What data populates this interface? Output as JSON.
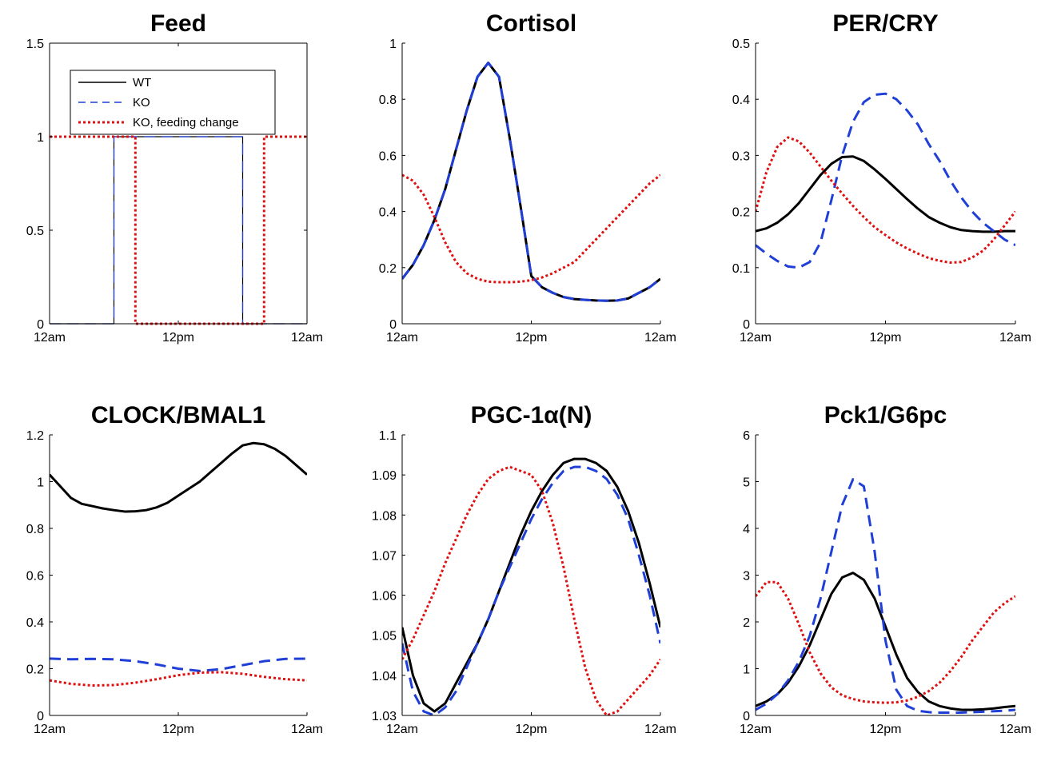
{
  "chart_data": [
    {
      "type": "line",
      "title": "Feed",
      "x_ticks": [
        "12am",
        "12pm",
        "12am"
      ],
      "xlim": [
        0,
        24
      ],
      "ylim": [
        0,
        1.5
      ],
      "y_ticks": [
        "0",
        "0.5",
        "1",
        "1.5"
      ],
      "legend_position": "top-left",
      "series": [
        {
          "name": "WT",
          "color": "#000000",
          "style": "solid",
          "width": 1.2,
          "x": [
            0,
            6,
            6,
            18,
            18,
            24
          ],
          "y": [
            0,
            0,
            1,
            1,
            0,
            0
          ]
        },
        {
          "name": "KO",
          "color": "#1f3fd6",
          "style": "dashed",
          "width": 1.2,
          "x": [
            0,
            6,
            6,
            18,
            18,
            24
          ],
          "y": [
            0,
            0,
            1,
            1,
            0,
            0
          ]
        },
        {
          "name": "KO, feeding change",
          "color": "#e01010",
          "style": "dotted",
          "width": 3,
          "x": [
            0,
            8,
            8,
            20,
            20,
            24
          ],
          "y": [
            1,
            1,
            0,
            0,
            1,
            1
          ]
        }
      ]
    },
    {
      "type": "line",
      "title": "Cortisol",
      "x_ticks": [
        "12am",
        "12pm",
        "12am"
      ],
      "xlim": [
        0,
        24
      ],
      "ylim": [
        0,
        1
      ],
      "y_ticks": [
        "0",
        "0.2",
        "0.4",
        "0.6",
        "0.8",
        "1"
      ],
      "series": [
        {
          "color": "#000000",
          "style": "solid",
          "width": 3,
          "x": [
            0,
            1,
            2,
            3,
            4,
            5,
            6,
            7,
            8,
            9,
            10,
            11,
            12,
            13,
            14,
            15,
            16,
            17,
            18,
            19,
            20,
            21,
            22,
            23,
            24
          ],
          "y": [
            0.16,
            0.21,
            0.28,
            0.37,
            0.48,
            0.62,
            0.76,
            0.88,
            0.93,
            0.88,
            0.66,
            0.42,
            0.17,
            0.13,
            0.11,
            0.095,
            0.088,
            0.085,
            0.083,
            0.082,
            0.083,
            0.09,
            0.11,
            0.13,
            0.16
          ]
        },
        {
          "color": "#1f3fd6",
          "style": "dashed",
          "width": 3,
          "x": [
            0,
            1,
            2,
            3,
            4,
            5,
            6,
            7,
            8,
            9,
            10,
            11,
            12,
            13,
            14,
            15,
            16,
            17,
            18,
            19,
            20,
            21,
            22,
            23,
            24
          ],
          "y": [
            0.16,
            0.21,
            0.28,
            0.37,
            0.48,
            0.62,
            0.76,
            0.88,
            0.93,
            0.88,
            0.66,
            0.42,
            0.17,
            0.13,
            0.11,
            0.095,
            0.088,
            0.085,
            0.083,
            0.082,
            0.083,
            0.09,
            0.11,
            0.13,
            0.16
          ]
        },
        {
          "color": "#e01010",
          "style": "dotted",
          "width": 3,
          "x": [
            0,
            1,
            2,
            3,
            4,
            5,
            6,
            7,
            8,
            9,
            10,
            11,
            12,
            13,
            14,
            15,
            16,
            17,
            18,
            19,
            20,
            21,
            22,
            23,
            24
          ],
          "y": [
            0.53,
            0.51,
            0.46,
            0.38,
            0.29,
            0.22,
            0.18,
            0.16,
            0.15,
            0.148,
            0.148,
            0.15,
            0.155,
            0.165,
            0.18,
            0.2,
            0.22,
            0.26,
            0.3,
            0.34,
            0.38,
            0.42,
            0.46,
            0.5,
            0.53
          ]
        }
      ]
    },
    {
      "type": "line",
      "title": "PER/CRY",
      "x_ticks": [
        "12am",
        "12pm",
        "12am"
      ],
      "xlim": [
        0,
        24
      ],
      "ylim": [
        0,
        0.5
      ],
      "y_ticks": [
        "0",
        "0.1",
        "0.2",
        "0.3",
        "0.4",
        "0.5"
      ],
      "series": [
        {
          "color": "#000000",
          "style": "solid",
          "width": 3,
          "x": [
            0,
            1,
            2,
            3,
            4,
            5,
            6,
            7,
            8,
            9,
            10,
            11,
            12,
            13,
            14,
            15,
            16,
            17,
            18,
            19,
            20,
            21,
            22,
            23,
            24
          ],
          "y": [
            0.165,
            0.17,
            0.18,
            0.195,
            0.215,
            0.24,
            0.265,
            0.285,
            0.297,
            0.298,
            0.29,
            0.275,
            0.258,
            0.24,
            0.222,
            0.205,
            0.19,
            0.18,
            0.172,
            0.167,
            0.165,
            0.164,
            0.164,
            0.165,
            0.165
          ]
        },
        {
          "color": "#1f3fd6",
          "style": "dashed",
          "width": 3,
          "x": [
            0,
            1,
            2,
            3,
            4,
            5,
            6,
            7,
            8,
            9,
            10,
            11,
            12,
            13,
            14,
            15,
            16,
            17,
            18,
            19,
            20,
            21,
            22,
            23,
            24
          ],
          "y": [
            0.14,
            0.125,
            0.112,
            0.102,
            0.1,
            0.11,
            0.145,
            0.22,
            0.3,
            0.36,
            0.395,
            0.408,
            0.41,
            0.4,
            0.38,
            0.355,
            0.32,
            0.29,
            0.255,
            0.225,
            0.2,
            0.18,
            0.165,
            0.15,
            0.14
          ]
        },
        {
          "color": "#e01010",
          "style": "dotted",
          "width": 3,
          "x": [
            0,
            1,
            2,
            3,
            4,
            5,
            6,
            7,
            8,
            9,
            10,
            11,
            12,
            13,
            14,
            15,
            16,
            17,
            18,
            19,
            20,
            21,
            22,
            23,
            24
          ],
          "y": [
            0.2,
            0.27,
            0.315,
            0.332,
            0.325,
            0.305,
            0.28,
            0.255,
            0.232,
            0.21,
            0.19,
            0.172,
            0.158,
            0.145,
            0.134,
            0.125,
            0.117,
            0.112,
            0.109,
            0.11,
            0.118,
            0.13,
            0.15,
            0.175,
            0.2
          ]
        }
      ]
    },
    {
      "type": "line",
      "title": "CLOCK/BMAL1",
      "x_ticks": [
        "12am",
        "12pm",
        "12am"
      ],
      "xlim": [
        0,
        24
      ],
      "ylim": [
        0,
        1.2
      ],
      "y_ticks": [
        "0",
        "0.2",
        "0.4",
        "0.6",
        "0.8",
        "1",
        "1.2"
      ],
      "series": [
        {
          "color": "#000000",
          "style": "solid",
          "width": 3,
          "x": [
            0,
            1,
            2,
            3,
            4,
            5,
            6,
            7,
            8,
            9,
            10,
            11,
            12,
            13,
            14,
            15,
            16,
            17,
            18,
            19,
            20,
            21,
            22,
            23,
            24
          ],
          "y": [
            1.03,
            0.98,
            0.93,
            0.905,
            0.895,
            0.885,
            0.878,
            0.872,
            0.873,
            0.878,
            0.89,
            0.91,
            0.94,
            0.97,
            1.0,
            1.04,
            1.08,
            1.12,
            1.155,
            1.165,
            1.16,
            1.14,
            1.11,
            1.07,
            1.03
          ]
        },
        {
          "color": "#1f3fd6",
          "style": "dashed",
          "width": 3,
          "x": [
            0,
            2,
            4,
            6,
            8,
            10,
            12,
            14,
            16,
            18,
            20,
            22,
            24
          ],
          "y": [
            0.243,
            0.24,
            0.242,
            0.24,
            0.232,
            0.218,
            0.2,
            0.19,
            0.198,
            0.215,
            0.232,
            0.242,
            0.243
          ]
        },
        {
          "color": "#e01010",
          "style": "dotted",
          "width": 3,
          "x": [
            0,
            2,
            4,
            6,
            8,
            10,
            12,
            14,
            16,
            18,
            20,
            22,
            24
          ],
          "y": [
            0.15,
            0.135,
            0.128,
            0.13,
            0.14,
            0.155,
            0.172,
            0.183,
            0.185,
            0.178,
            0.165,
            0.155,
            0.15
          ]
        }
      ]
    },
    {
      "type": "line",
      "title": "PGC-1α(N)",
      "x_ticks": [
        "12am",
        "12pm",
        "12am"
      ],
      "xlim": [
        0,
        24
      ],
      "ylim": [
        1.03,
        1.1
      ],
      "y_ticks": [
        "1.03",
        "1.04",
        "1.05",
        "1.06",
        "1.07",
        "1.08",
        "1.09",
        "1.1"
      ],
      "series": [
        {
          "color": "#000000",
          "style": "solid",
          "width": 3,
          "x": [
            0,
            1,
            2,
            3,
            4,
            5,
            6,
            7,
            8,
            9,
            10,
            11,
            12,
            13,
            14,
            15,
            16,
            17,
            18,
            19,
            20,
            21,
            22,
            23,
            24
          ],
          "y": [
            1.052,
            1.04,
            1.033,
            1.031,
            1.033,
            1.038,
            1.043,
            1.048,
            1.054,
            1.061,
            1.068,
            1.075,
            1.081,
            1.086,
            1.09,
            1.093,
            1.094,
            1.094,
            1.093,
            1.091,
            1.087,
            1.081,
            1.073,
            1.063,
            1.052
          ]
        },
        {
          "color": "#1f3fd6",
          "style": "dashed",
          "width": 3,
          "x": [
            0,
            1,
            2,
            3,
            4,
            5,
            6,
            7,
            8,
            9,
            10,
            11,
            12,
            13,
            14,
            15,
            16,
            17,
            18,
            19,
            20,
            21,
            22,
            23,
            24
          ],
          "y": [
            1.048,
            1.036,
            1.031,
            1.03,
            1.032,
            1.036,
            1.042,
            1.048,
            1.054,
            1.061,
            1.067,
            1.073,
            1.079,
            1.084,
            1.088,
            1.091,
            1.092,
            1.092,
            1.091,
            1.089,
            1.085,
            1.079,
            1.07,
            1.06,
            1.048
          ]
        },
        {
          "color": "#e01010",
          "style": "dotted",
          "width": 3,
          "x": [
            0,
            1,
            2,
            3,
            4,
            5,
            6,
            7,
            8,
            9,
            10,
            11,
            12,
            13,
            14,
            15,
            16,
            17,
            18,
            19,
            20,
            21,
            22,
            23,
            24
          ],
          "y": [
            1.044,
            1.049,
            1.055,
            1.061,
            1.068,
            1.074,
            1.08,
            1.085,
            1.089,
            1.091,
            1.092,
            1.091,
            1.09,
            1.086,
            1.078,
            1.067,
            1.054,
            1.042,
            1.034,
            1.03,
            1.031,
            1.034,
            1.037,
            1.04,
            1.044
          ]
        }
      ]
    },
    {
      "type": "line",
      "title": "Pck1/G6pc",
      "x_ticks": [
        "12am",
        "12pm",
        "12am"
      ],
      "xlim": [
        0,
        24
      ],
      "ylim": [
        0,
        6
      ],
      "y_ticks": [
        "0",
        "1",
        "2",
        "3",
        "4",
        "5",
        "6"
      ],
      "series": [
        {
          "color": "#000000",
          "style": "solid",
          "width": 3,
          "x": [
            0,
            1,
            2,
            3,
            4,
            5,
            6,
            7,
            8,
            9,
            10,
            11,
            12,
            13,
            14,
            15,
            16,
            17,
            18,
            19,
            20,
            21,
            22,
            23,
            24
          ],
          "y": [
            0.2,
            0.3,
            0.45,
            0.7,
            1.05,
            1.5,
            2.05,
            2.6,
            2.95,
            3.05,
            2.9,
            2.5,
            1.9,
            1.3,
            0.8,
            0.5,
            0.3,
            0.2,
            0.15,
            0.12,
            0.12,
            0.13,
            0.15,
            0.18,
            0.2
          ]
        },
        {
          "color": "#1f3fd6",
          "style": "dashed",
          "width": 3,
          "x": [
            0,
            1,
            2,
            3,
            4,
            5,
            6,
            7,
            8,
            9,
            10,
            11,
            12,
            13,
            14,
            15,
            16,
            17,
            18,
            19,
            20,
            21,
            22,
            23,
            24
          ],
          "y": [
            0.12,
            0.25,
            0.45,
            0.75,
            1.15,
            1.7,
            2.5,
            3.5,
            4.5,
            5.05,
            4.9,
            3.5,
            1.6,
            0.55,
            0.2,
            0.1,
            0.07,
            0.06,
            0.06,
            0.06,
            0.07,
            0.08,
            0.09,
            0.1,
            0.12
          ]
        },
        {
          "color": "#e01010",
          "style": "dotted",
          "width": 3,
          "x": [
            0,
            1,
            2,
            3,
            4,
            5,
            6,
            7,
            8,
            9,
            10,
            11,
            12,
            13,
            14,
            15,
            16,
            17,
            18,
            19,
            20,
            21,
            22,
            23,
            24
          ],
          "y": [
            2.55,
            2.85,
            2.85,
            2.5,
            1.95,
            1.35,
            0.9,
            0.6,
            0.43,
            0.35,
            0.3,
            0.28,
            0.27,
            0.28,
            0.32,
            0.4,
            0.52,
            0.7,
            0.95,
            1.25,
            1.6,
            1.9,
            2.2,
            2.4,
            2.55
          ]
        }
      ]
    }
  ]
}
